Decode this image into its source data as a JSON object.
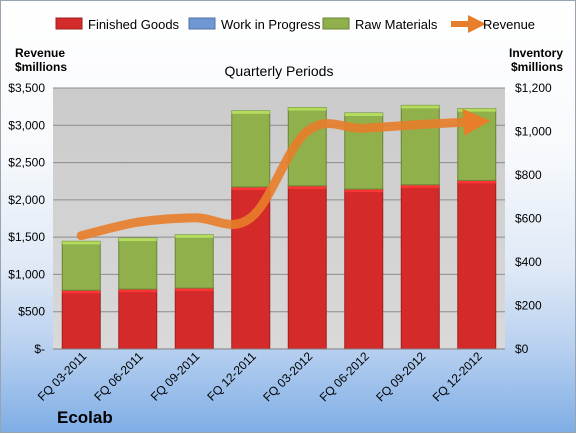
{
  "chart_data": {
    "type": "bar",
    "stacked": true,
    "title": "Quarterly Periods",
    "company": "Ecolab",
    "left_axis_title": [
      "Revenue",
      "$millions"
    ],
    "right_axis_title": [
      "Inventory",
      "$millions"
    ],
    "categories": [
      "FQ 03-2011",
      "FQ 06-2011",
      "FQ 09-2011",
      "FQ 12-2011",
      "FQ 03-2012",
      "FQ 06-2012",
      "FQ 09-2012",
      "FQ 12-2012"
    ],
    "left_ticks": [
      "$-",
      "$500",
      "$1,000",
      "$1,500",
      "$2,000",
      "$2,500",
      "$3,000",
      "$3,500"
    ],
    "right_ticks": [
      "$0",
      "$200",
      "$400",
      "$600",
      "$800",
      "$1,000",
      "$1,200"
    ],
    "left_ylim": [
      0,
      3500
    ],
    "right_ylim": [
      0,
      1200
    ],
    "series": [
      {
        "name": "Finished Goods",
        "kind": "bar",
        "axis": "right",
        "color": "#d42a2a",
        "values": [
          270,
          275,
          280,
          745,
          750,
          735,
          755,
          775
        ]
      },
      {
        "name": "Work in Progress",
        "kind": "bar",
        "axis": "right",
        "color": "#6f97d4",
        "values": [
          0,
          0,
          0,
          0,
          0,
          0,
          0,
          0
        ]
      },
      {
        "name": "Raw Materials",
        "kind": "bar",
        "axis": "right",
        "color": "#8fb04a",
        "values": [
          225,
          235,
          245,
          350,
          360,
          350,
          365,
          330
        ]
      },
      {
        "name": "Revenue",
        "kind": "line",
        "axis": "left",
        "color": "#e87d2a",
        "values": [
          1520,
          1700,
          1760,
          1760,
          2920,
          2960,
          3010,
          3050
        ]
      }
    ],
    "grid": true,
    "legend": "top"
  }
}
